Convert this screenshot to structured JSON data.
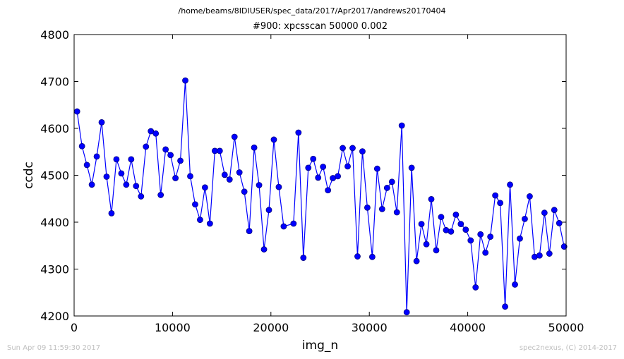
{
  "header": {
    "file_path": "/home/beams/8IDIUSER/spec_data/2017/Apr2017/andrews20170404"
  },
  "footer": {
    "timestamp": "Sun Apr 09 11:59:30 2017",
    "credit": "spec2nexus, (C) 2014-2017"
  },
  "colors": {
    "series_line": "#0000ff",
    "marker_fill": "#0000ff",
    "marker_edge": "#000080",
    "footer_text": "#c0c0c0"
  },
  "chart_data": {
    "type": "line",
    "title": "#900: xpcsscan 50000 0.002",
    "xlabel": "img_n",
    "ylabel": "ccdc",
    "xlim": [
      0,
      50000
    ],
    "ylim": [
      4200,
      4800
    ],
    "xticks": [
      0,
      10000,
      20000,
      30000,
      40000,
      50000
    ],
    "yticks": [
      4200,
      4300,
      4400,
      4500,
      4600,
      4700,
      4800
    ],
    "grid": false,
    "legend": "none",
    "series": [
      {
        "markers": "circle",
        "x": [
          300,
          800,
          1300,
          1800,
          2300,
          2800,
          3300,
          3800,
          4300,
          4800,
          5300,
          5800,
          6300,
          6800,
          7300,
          7800,
          8300,
          8800,
          9300,
          9800,
          10300,
          10800,
          11300,
          11800,
          12300,
          12800,
          13300,
          13800,
          14300,
          14800,
          15300,
          15800,
          16300,
          16800,
          17300,
          17800,
          18300,
          18800,
          19300,
          19800,
          20300,
          20800,
          21300,
          22300,
          22800,
          23300,
          23800,
          24300,
          24800,
          25300,
          25800,
          26300,
          26800,
          27300,
          27800,
          28300,
          28800,
          29300,
          29800,
          30300,
          30800,
          31300,
          31800,
          32300,
          32800,
          33300,
          33800,
          34300,
          34800,
          35300,
          35800,
          36300,
          36800,
          37300,
          37800,
          38300,
          38800,
          39300,
          39800,
          40300,
          40800,
          41300,
          41800,
          42300,
          42800,
          43300,
          43800,
          44300,
          44800,
          45300,
          45800,
          46300,
          46800,
          47300,
          47800,
          48300,
          48800,
          49300,
          49800
        ],
        "y": [
          4636,
          4562,
          4522,
          4480,
          4540,
          4613,
          4497,
          4419,
          4534,
          4504,
          4480,
          4534,
          4477,
          4455,
          4561,
          4594,
          4589,
          4458,
          4555,
          4543,
          4494,
          4531,
          4702,
          4498,
          4438,
          4405,
          4474,
          4397,
          4552,
          4552,
          4501,
          4491,
          4582,
          4506,
          4465,
          4381,
          4559,
          4479,
          4342,
          4426,
          4576,
          4475,
          4391,
          4397,
          4591,
          4324,
          4516,
          4535,
          4495,
          4518,
          4468,
          4494,
          4498,
          4558,
          4519,
          4558,
          4327,
          4551,
          4431,
          4326,
          4514,
          4428,
          4473,
          4486,
          4421,
          4606,
          4208,
          4516,
          4317,
          4396,
          4353,
          4449,
          4340,
          4411,
          4383,
          4380,
          4416,
          4396,
          4384,
          4361,
          4261,
          4374,
          4335,
          4369,
          4457,
          4441,
          4220,
          4480,
          4267,
          4365,
          4407,
          4455,
          4326,
          4329,
          4420,
          4333,
          4426,
          4398,
          4348
        ]
      }
    ]
  }
}
